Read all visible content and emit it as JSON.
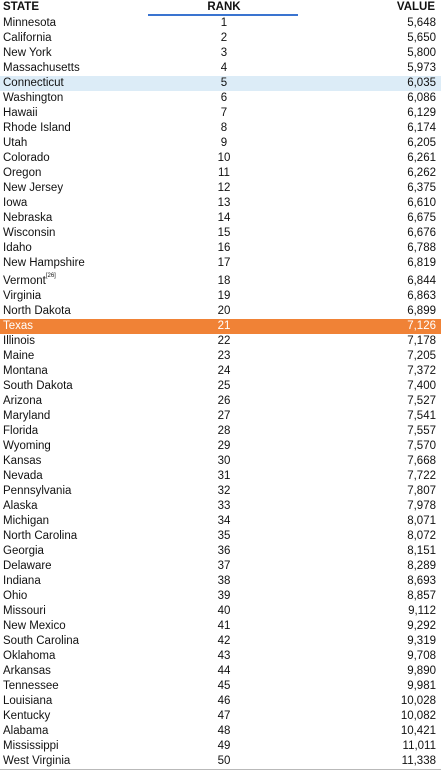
{
  "header": {
    "state": "STATE",
    "rank": "RANK",
    "value": "VALUE"
  },
  "colors": {
    "highlight_selected": "#dcecf7",
    "highlight_texas": "#f08236",
    "sort_indicator": "#3a74d0"
  },
  "rows": [
    {
      "state": "Minnesota",
      "rank": "1",
      "value": "5,648"
    },
    {
      "state": "California",
      "rank": "2",
      "value": "5,650"
    },
    {
      "state": "New York",
      "rank": "3",
      "value": "5,800"
    },
    {
      "state": "Massachusetts",
      "rank": "4",
      "value": "5,973"
    },
    {
      "state": "Connecticut",
      "rank": "5",
      "value": "6,035"
    },
    {
      "state": "Washington",
      "rank": "6",
      "value": "6,086"
    },
    {
      "state": "Hawaii",
      "rank": "7",
      "value": "6,129"
    },
    {
      "state": "Rhode Island",
      "rank": "8",
      "value": "6,174"
    },
    {
      "state": "Utah",
      "rank": "9",
      "value": "6,205"
    },
    {
      "state": "Colorado",
      "rank": "10",
      "value": "6,261"
    },
    {
      "state": "Oregon",
      "rank": "11",
      "value": "6,262"
    },
    {
      "state": "New Jersey",
      "rank": "12",
      "value": "6,375"
    },
    {
      "state": "Iowa",
      "rank": "13",
      "value": "6,610"
    },
    {
      "state": "Nebraska",
      "rank": "14",
      "value": "6,675"
    },
    {
      "state": "Wisconsin",
      "rank": "15",
      "value": "6,676"
    },
    {
      "state": "Idaho",
      "rank": "16",
      "value": "6,788"
    },
    {
      "state": "New Hampshire",
      "rank": "17",
      "value": "6,819"
    },
    {
      "state": "Vermont",
      "footnote": "[26]",
      "rank": "18",
      "value": "6,844"
    },
    {
      "state": "Virginia",
      "rank": "19",
      "value": "6,863"
    },
    {
      "state": "North Dakota",
      "rank": "20",
      "value": "6,899"
    },
    {
      "state": "Texas",
      "rank": "21",
      "value": "7,126"
    },
    {
      "state": "Illinois",
      "rank": "22",
      "value": "7,178"
    },
    {
      "state": "Maine",
      "rank": "23",
      "value": "7,205"
    },
    {
      "state": "Montana",
      "rank": "24",
      "value": "7,372"
    },
    {
      "state": "South Dakota",
      "rank": "25",
      "value": "7,400"
    },
    {
      "state": "Arizona",
      "rank": "26",
      "value": "7,527"
    },
    {
      "state": "Maryland",
      "rank": "27",
      "value": "7,541"
    },
    {
      "state": "Florida",
      "rank": "28",
      "value": "7,557"
    },
    {
      "state": "Wyoming",
      "rank": "29",
      "value": "7,570"
    },
    {
      "state": "Kansas",
      "rank": "30",
      "value": "7,668"
    },
    {
      "state": "Nevada",
      "rank": "31",
      "value": "7,722"
    },
    {
      "state": "Pennsylvania",
      "rank": "32",
      "value": "7,807"
    },
    {
      "state": "Alaska",
      "rank": "33",
      "value": "7,978"
    },
    {
      "state": "Michigan",
      "rank": "34",
      "value": "8,071"
    },
    {
      "state": "North Carolina",
      "rank": "35",
      "value": "8,072"
    },
    {
      "state": "Georgia",
      "rank": "36",
      "value": "8,151"
    },
    {
      "state": "Delaware",
      "rank": "37",
      "value": "8,289"
    },
    {
      "state": "Indiana",
      "rank": "38",
      "value": "8,693"
    },
    {
      "state": "Ohio",
      "rank": "39",
      "value": "8,857"
    },
    {
      "state": "Missouri",
      "rank": "40",
      "value": "9,112"
    },
    {
      "state": "New Mexico",
      "rank": "41",
      "value": "9,292"
    },
    {
      "state": "South Carolina",
      "rank": "42",
      "value": "9,319"
    },
    {
      "state": "Oklahoma",
      "rank": "43",
      "value": "9,708"
    },
    {
      "state": "Arkansas",
      "rank": "44",
      "value": "9,890"
    },
    {
      "state": "Tennessee",
      "rank": "45",
      "value": "9,981"
    },
    {
      "state": "Louisiana",
      "rank": "46",
      "value": "10,028"
    },
    {
      "state": "Kentucky",
      "rank": "47",
      "value": "10,082"
    },
    {
      "state": "Alabama",
      "rank": "48",
      "value": "10,421"
    },
    {
      "state": "Mississippi",
      "rank": "49",
      "value": "11,011"
    },
    {
      "state": "West Virginia",
      "rank": "50",
      "value": "11,338"
    }
  ]
}
